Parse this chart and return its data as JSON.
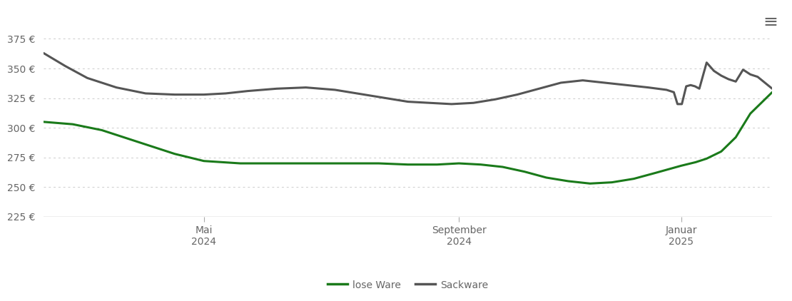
{
  "background_color": "#ffffff",
  "grid_color": "#cccccc",
  "ylim": [
    225,
    390
  ],
  "yticks": [
    225,
    250,
    275,
    300,
    325,
    350,
    375
  ],
  "x_tick_positions": [
    0.22,
    0.57,
    0.875
  ],
  "x_tick_labels": [
    "Mai\n2024",
    "September\n2024",
    "Januar\n2025"
  ],
  "lose_ware_color": "#1a7a1a",
  "sackware_color": "#555555",
  "line_width": 2.2,
  "legend_labels": [
    "lose Ware",
    "Sackware"
  ],
  "lose_ware_x": [
    0.0,
    0.04,
    0.08,
    0.13,
    0.18,
    0.22,
    0.27,
    0.3,
    0.34,
    0.38,
    0.42,
    0.46,
    0.5,
    0.54,
    0.57,
    0.6,
    0.63,
    0.66,
    0.69,
    0.72,
    0.75,
    0.78,
    0.81,
    0.84,
    0.875,
    0.895,
    0.91,
    0.93,
    0.95,
    0.97,
    1.0
  ],
  "lose_ware_y": [
    305,
    303,
    298,
    288,
    278,
    272,
    270,
    270,
    270,
    270,
    270,
    270,
    269,
    269,
    270,
    269,
    267,
    263,
    258,
    255,
    253,
    254,
    257,
    262,
    268,
    271,
    274,
    280,
    292,
    312,
    330
  ],
  "sackware_x": [
    0.0,
    0.03,
    0.06,
    0.1,
    0.14,
    0.18,
    0.22,
    0.25,
    0.28,
    0.32,
    0.36,
    0.4,
    0.44,
    0.47,
    0.5,
    0.53,
    0.56,
    0.59,
    0.62,
    0.65,
    0.68,
    0.71,
    0.74,
    0.77,
    0.8,
    0.83,
    0.855,
    0.865,
    0.87,
    0.876,
    0.882,
    0.888,
    0.894,
    0.9,
    0.91,
    0.92,
    0.93,
    0.94,
    0.95,
    0.96,
    0.97,
    0.98,
    1.0
  ],
  "sackware_y": [
    363,
    352,
    342,
    334,
    329,
    328,
    328,
    329,
    331,
    333,
    334,
    332,
    328,
    325,
    322,
    321,
    320,
    321,
    324,
    328,
    333,
    338,
    340,
    338,
    336,
    334,
    332,
    330,
    320,
    320,
    335,
    336,
    335,
    333,
    355,
    348,
    344,
    341,
    339,
    349,
    345,
    343,
    333
  ]
}
